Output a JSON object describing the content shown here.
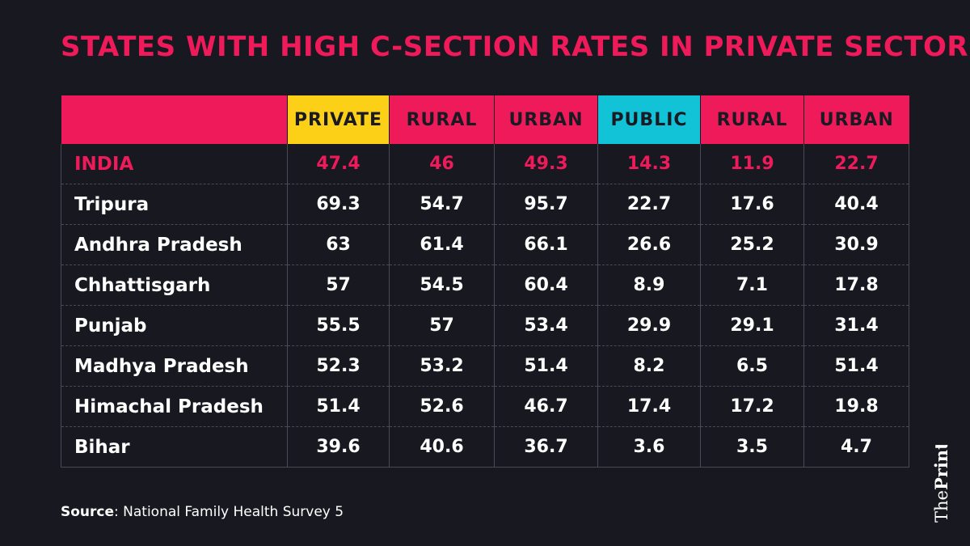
{
  "chart_data": {
    "type": "table",
    "title": "STATES WITH HIGH C-SECTION RATES IN PRIVATE SECTOR",
    "columns": [
      "",
      "PRIVATE",
      "RURAL",
      "URBAN",
      "PUBLIC",
      "RURAL",
      "URBAN"
    ],
    "rows": [
      [
        "INDIA",
        "47.4",
        "46",
        "49.3",
        "14.3",
        "11.9",
        "22.7"
      ],
      [
        "Tripura",
        "69.3",
        "54.7",
        "95.7",
        "22.7",
        "17.6",
        "40.4"
      ],
      [
        "Andhra Pradesh",
        "63",
        "61.4",
        "66.1",
        "26.6",
        "25.2",
        "30.9"
      ],
      [
        "Chhattisgarh",
        "57",
        "54.5",
        "60.4",
        "8.9",
        "7.1",
        "17.8"
      ],
      [
        "Punjab",
        "55.5",
        "57",
        "53.4",
        "29.9",
        "29.1",
        "31.4"
      ],
      [
        "Madhya Pradesh",
        "52.3",
        "53.2",
        "51.4",
        "8.2",
        "6.5",
        "51.4"
      ],
      [
        "Himachal Pradesh",
        "51.4",
        "52.6",
        "46.7",
        "17.4",
        "17.2",
        "19.8"
      ],
      [
        "Bihar",
        "39.6",
        "40.6",
        "36.7",
        "3.6",
        "3.5",
        "4.7"
      ]
    ],
    "highlight_row": "INDIA",
    "colors": {
      "background": "#181820",
      "accent_pink": "#ef1a5a",
      "private_header": "#fcd016",
      "public_header": "#12c2d6"
    }
  },
  "source": {
    "label": "Source",
    "text": ": National Family Health Survey 5"
  },
  "logo": {
    "text_regular": "The",
    "text_bold": "Print"
  }
}
